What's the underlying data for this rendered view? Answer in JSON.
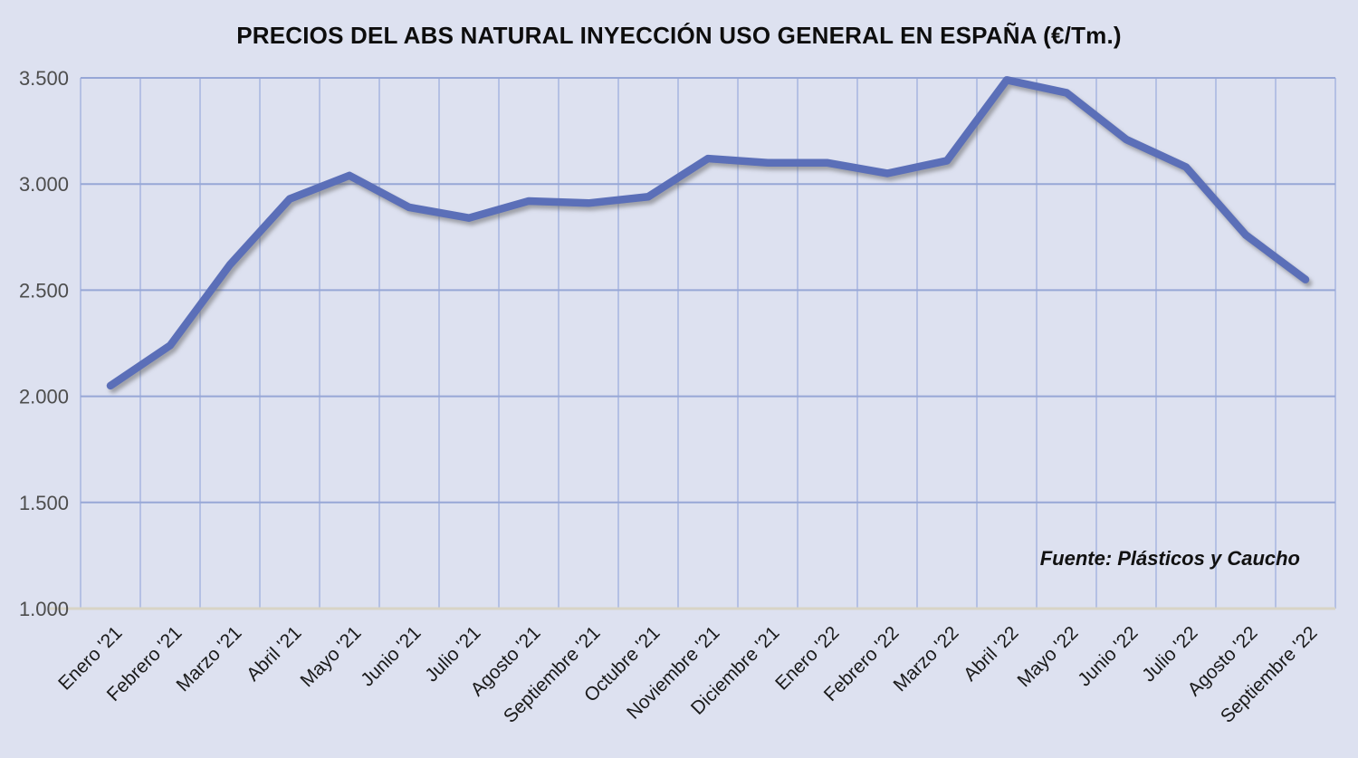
{
  "page": {
    "title": "PRECIOS DEL ABS NATURAL INYECCIÓN USO GENERAL EN ESPAÑA (€/Tm.)",
    "source_note": "Fuente: Plásticos y Caucho"
  },
  "colors": {
    "background": "#dde1f0",
    "grid_vertical": "#b4c0e4",
    "grid_horizontal": "#97a7d6",
    "axis_line": "#d8d4c6",
    "series_line": "#5b6fb8",
    "title_text": "#0d0d0d",
    "y_tick_text": "#4d4d4d",
    "x_tick_text": "#1a1a1a"
  },
  "chart_data": {
    "type": "line",
    "title": "PRECIOS DEL ABS NATURAL INYECCIÓN USO GENERAL EN ESPAÑA (€/Tm.)",
    "source": "Fuente: Plásticos y Caucho",
    "unit": "€/Tm.",
    "legend": false,
    "grid": true,
    "categories": [
      "Enero '21",
      "Febrero '21",
      "Marzo '21",
      "Abril '21",
      "Mayo '21",
      "Junio '21",
      "Julio '21",
      "Agosto '21",
      "Septiembre '21",
      "Octubre '21",
      "Noviembre '21",
      "Diciembre '21",
      "Enero '22",
      "Febrero '22",
      "Marzo '22",
      "Abril '22",
      "Mayo '22",
      "Junio '22",
      "Julio '22",
      "Agosto '22",
      "Septiembre '22"
    ],
    "values": [
      2050,
      2240,
      2620,
      2930,
      3040,
      2890,
      2840,
      2920,
      2910,
      2940,
      3120,
      3100,
      3100,
      3050,
      3110,
      3490,
      3430,
      3210,
      3080,
      2760,
      2550
    ],
    "ylim": [
      1000,
      3500
    ],
    "y_ticks": [
      {
        "value": 1000,
        "label": "1.000"
      },
      {
        "value": 1500,
        "label": "1.500"
      },
      {
        "value": 2000,
        "label": "2.000"
      },
      {
        "value": 2500,
        "label": "2.500"
      },
      {
        "value": 3000,
        "label": "3.000"
      },
      {
        "value": 3500,
        "label": "3.500"
      }
    ]
  }
}
